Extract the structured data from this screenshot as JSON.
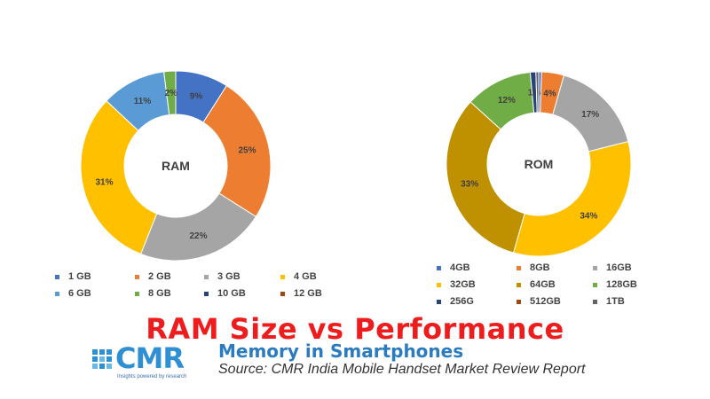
{
  "chart_data": [
    {
      "type": "pie",
      "center_label": "RAM",
      "slices": [
        {
          "label": "1 GB",
          "value": 9,
          "display": "9%",
          "color": "#4472c4"
        },
        {
          "label": "2 GB",
          "value": 25,
          "display": "25%",
          "color": "#ed7d31"
        },
        {
          "label": "3 GB",
          "value": 22,
          "display": "22%",
          "color": "#a5a5a5"
        },
        {
          "label": "4 GB",
          "value": 31,
          "display": "31%",
          "color": "#ffc000"
        },
        {
          "label": "6 GB",
          "value": 11,
          "display": "11%",
          "color": "#5b9bd5"
        },
        {
          "label": "8 GB",
          "value": 2,
          "display": "2%",
          "color": "#70ad47"
        },
        {
          "label": "10 GB",
          "value": 0,
          "display": "",
          "color": "#264478"
        },
        {
          "label": "12 GB",
          "value": 0,
          "display": "",
          "color": "#9e480e"
        }
      ]
    },
    {
      "type": "pie",
      "center_label": "ROM",
      "slices": [
        {
          "label": "4GB",
          "value": 0.5,
          "display": "",
          "color": "#4472c4"
        },
        {
          "label": "8GB",
          "value": 4,
          "display": "4%",
          "color": "#ed7d31"
        },
        {
          "label": "16GB",
          "value": 17,
          "display": "17%",
          "color": "#a5a5a5"
        },
        {
          "label": "32GB",
          "value": 34,
          "display": "34%",
          "color": "#ffc000"
        },
        {
          "label": "64GB",
          "value": 33,
          "display": "33%",
          "color": "#bf9000"
        },
        {
          "label": "128GB",
          "value": 12,
          "display": "12%",
          "color": "#70ad47"
        },
        {
          "label": "256G",
          "value": 1,
          "display": "1%",
          "color": "#264478"
        },
        {
          "label": "512GB",
          "value": 0,
          "display": "",
          "color": "#9e480e"
        },
        {
          "label": "1TB",
          "value": 0.5,
          "display": "",
          "color": "#636363"
        }
      ]
    }
  ],
  "overlay_title": "RAM Size vs Performance",
  "footer": {
    "logo_text": "CMR",
    "logo_tagline": "Insights powered by research",
    "report_title": "Memory in Smartphones",
    "source": "Source:  CMR India Mobile Handset Market Review Report"
  }
}
